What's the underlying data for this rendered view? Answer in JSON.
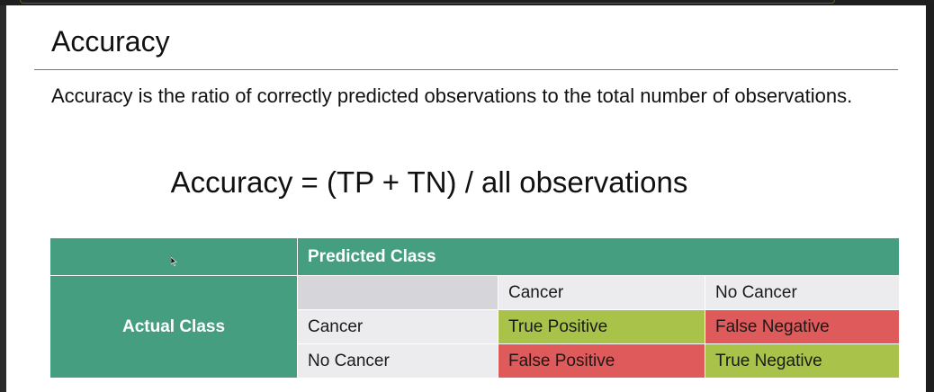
{
  "slide": {
    "title": "Accuracy",
    "definition": "Accuracy is the ratio of correctly predicted observations to the total number of observations.",
    "formula": "Accuracy = (TP + TN) / all observations"
  },
  "matrix": {
    "predicted_header": "Predicted Class",
    "actual_header": "Actual Class",
    "column_labels": [
      "Cancer",
      "No Cancer"
    ],
    "rows": [
      {
        "label": "Cancer",
        "cells": [
          "True Positive",
          "False Negative"
        ]
      },
      {
        "label": "No Cancer",
        "cells": [
          "False Positive",
          "True Negative"
        ]
      }
    ]
  },
  "colors": {
    "header_green": "#469e80",
    "correct": "#a9c24a",
    "incorrect": "#df5a5a"
  }
}
